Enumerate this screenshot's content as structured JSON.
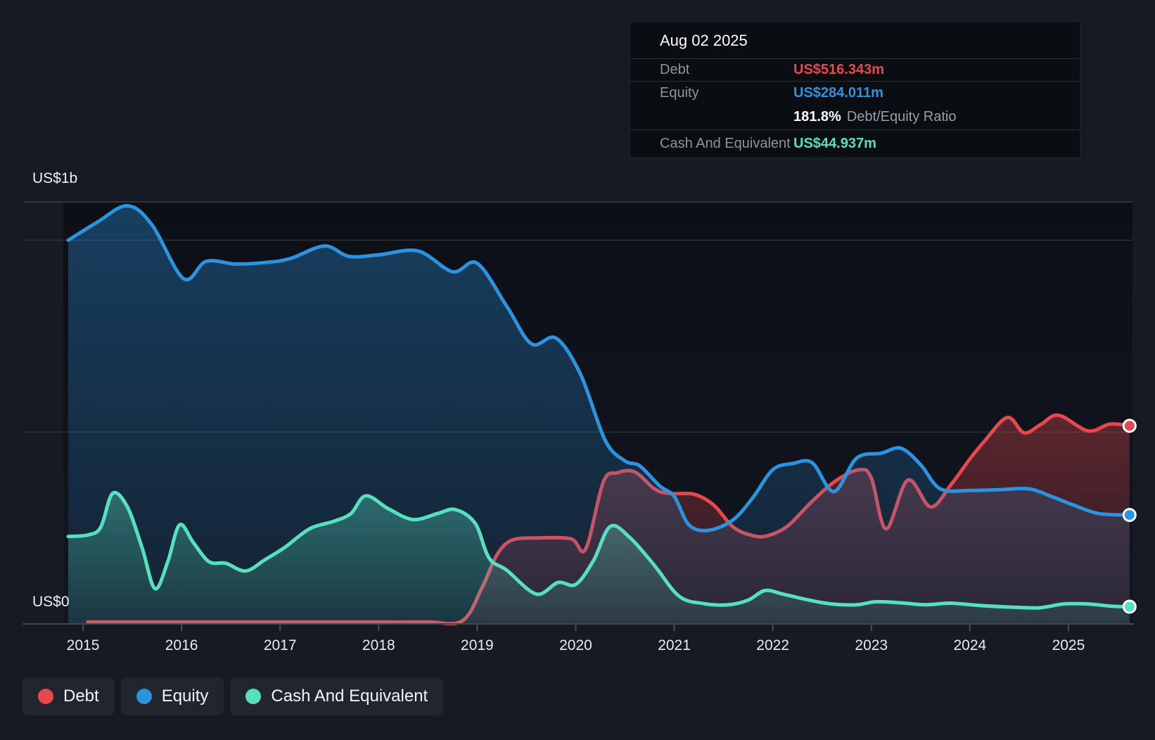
{
  "y_axis": {
    "top_label": "US$1b",
    "bottom_label": "US$0"
  },
  "tooltip": {
    "date": "Aug 02 2025",
    "rows": [
      {
        "label": "Debt",
        "value": "US$516.343m",
        "series": "debt"
      },
      {
        "label": "Equity",
        "value": "US$284.011m",
        "series": "equity"
      },
      {
        "label": "Cash And Equivalent",
        "value": "US$44.937m",
        "series": "cash"
      }
    ],
    "ratio": {
      "value": "181.8%",
      "label": "Debt/Equity Ratio"
    }
  },
  "legend": {
    "items": [
      {
        "label": "Debt",
        "color": "#e5484d"
      },
      {
        "label": "Equity",
        "color": "#2b93e0"
      },
      {
        "label": "Cash And Equivalent",
        "color": "#57e0c0"
      }
    ]
  },
  "chart_data": {
    "type": "area",
    "title": "Debt to Equity History",
    "xlabel": "",
    "ylabel": "US$",
    "xlim": [
      2014.8,
      2025.65
    ],
    "ylim": [
      0,
      1100
    ],
    "x_ticks": [
      2015,
      2016,
      2017,
      2018,
      2019,
      2020,
      2021,
      2022,
      2023,
      2024,
      2025
    ],
    "y_gridlines_values": [
      1000,
      500,
      0
    ],
    "grid": true,
    "legend_position": "bottom-left",
    "series": [
      {
        "name": "Debt",
        "color": "#e5484d",
        "end_value": 516.343,
        "points": [
          [
            2015.05,
            5
          ],
          [
            2015.5,
            5
          ],
          [
            2016.0,
            5
          ],
          [
            2016.5,
            5
          ],
          [
            2017.0,
            5
          ],
          [
            2017.5,
            5
          ],
          [
            2018.0,
            5
          ],
          [
            2018.5,
            5
          ],
          [
            2018.85,
            8
          ],
          [
            2019.05,
            95
          ],
          [
            2019.2,
            180
          ],
          [
            2019.35,
            218
          ],
          [
            2019.6,
            224
          ],
          [
            2019.95,
            222
          ],
          [
            2020.1,
            195
          ],
          [
            2020.28,
            370
          ],
          [
            2020.42,
            394
          ],
          [
            2020.6,
            396
          ],
          [
            2020.8,
            352
          ],
          [
            2020.95,
            340
          ],
          [
            2021.2,
            338
          ],
          [
            2021.4,
            310
          ],
          [
            2021.6,
            252
          ],
          [
            2021.8,
            230
          ],
          [
            2021.95,
            230
          ],
          [
            2022.15,
            255
          ],
          [
            2022.4,
            320
          ],
          [
            2022.65,
            375
          ],
          [
            2022.88,
            402
          ],
          [
            2023.0,
            380
          ],
          [
            2023.15,
            248
          ],
          [
            2023.37,
            375
          ],
          [
            2023.6,
            305
          ],
          [
            2023.8,
            360
          ],
          [
            2024.0,
            430
          ],
          [
            2024.15,
            477
          ],
          [
            2024.38,
            538
          ],
          [
            2024.55,
            498
          ],
          [
            2024.72,
            520
          ],
          [
            2024.9,
            544
          ],
          [
            2025.2,
            503
          ],
          [
            2025.42,
            521
          ],
          [
            2025.62,
            516.343
          ]
        ]
      },
      {
        "name": "Equity",
        "color": "#2b93e0",
        "end_value": 284.011,
        "points": [
          [
            2014.85,
            1000
          ],
          [
            2015.15,
            1048
          ],
          [
            2015.45,
            1090
          ],
          [
            2015.7,
            1040
          ],
          [
            2016.02,
            900
          ],
          [
            2016.25,
            945
          ],
          [
            2016.55,
            938
          ],
          [
            2016.85,
            942
          ],
          [
            2017.1,
            952
          ],
          [
            2017.45,
            985
          ],
          [
            2017.7,
            958
          ],
          [
            2018.0,
            962
          ],
          [
            2018.4,
            972
          ],
          [
            2018.75,
            918
          ],
          [
            2019.0,
            940
          ],
          [
            2019.3,
            828
          ],
          [
            2019.55,
            730
          ],
          [
            2019.8,
            745
          ],
          [
            2020.05,
            650
          ],
          [
            2020.3,
            478
          ],
          [
            2020.5,
            425
          ],
          [
            2020.65,
            412
          ],
          [
            2020.85,
            360
          ],
          [
            2021.0,
            332
          ],
          [
            2021.15,
            258
          ],
          [
            2021.35,
            244
          ],
          [
            2021.6,
            272
          ],
          [
            2021.8,
            330
          ],
          [
            2022.0,
            402
          ],
          [
            2022.2,
            418
          ],
          [
            2022.4,
            420
          ],
          [
            2022.62,
            345
          ],
          [
            2022.85,
            432
          ],
          [
            2023.1,
            445
          ],
          [
            2023.3,
            458
          ],
          [
            2023.5,
            415
          ],
          [
            2023.7,
            352
          ],
          [
            2024.0,
            348
          ],
          [
            2024.3,
            350
          ],
          [
            2024.6,
            352
          ],
          [
            2024.85,
            330
          ],
          [
            2025.05,
            310
          ],
          [
            2025.3,
            288
          ],
          [
            2025.62,
            284.011
          ]
        ]
      },
      {
        "name": "Cash And Equivalent",
        "color": "#57e0c0",
        "end_value": 44.937,
        "points": [
          [
            2014.85,
            228
          ],
          [
            2015.05,
            232
          ],
          [
            2015.18,
            252
          ],
          [
            2015.3,
            340
          ],
          [
            2015.45,
            305
          ],
          [
            2015.6,
            198
          ],
          [
            2015.73,
            92
          ],
          [
            2015.86,
            162
          ],
          [
            2015.98,
            258
          ],
          [
            2016.12,
            212
          ],
          [
            2016.28,
            162
          ],
          [
            2016.45,
            158
          ],
          [
            2016.65,
            138
          ],
          [
            2016.85,
            168
          ],
          [
            2017.05,
            200
          ],
          [
            2017.3,
            248
          ],
          [
            2017.55,
            268
          ],
          [
            2017.72,
            288
          ],
          [
            2017.87,
            334
          ],
          [
            2018.1,
            300
          ],
          [
            2018.35,
            272
          ],
          [
            2018.6,
            288
          ],
          [
            2018.78,
            298
          ],
          [
            2018.98,
            262
          ],
          [
            2019.12,
            172
          ],
          [
            2019.3,
            140
          ],
          [
            2019.6,
            78
          ],
          [
            2019.82,
            108
          ],
          [
            2020.0,
            103
          ],
          [
            2020.18,
            165
          ],
          [
            2020.35,
            254
          ],
          [
            2020.55,
            225
          ],
          [
            2020.8,
            152
          ],
          [
            2021.05,
            72
          ],
          [
            2021.3,
            53
          ],
          [
            2021.55,
            50
          ],
          [
            2021.75,
            62
          ],
          [
            2021.92,
            87
          ],
          [
            2022.1,
            78
          ],
          [
            2022.35,
            63
          ],
          [
            2022.6,
            52
          ],
          [
            2022.85,
            50
          ],
          [
            2023.05,
            58
          ],
          [
            2023.3,
            55
          ],
          [
            2023.55,
            50
          ],
          [
            2023.8,
            54
          ],
          [
            2024.1,
            48
          ],
          [
            2024.4,
            44
          ],
          [
            2024.7,
            42
          ],
          [
            2024.95,
            52
          ],
          [
            2025.2,
            52
          ],
          [
            2025.45,
            46
          ],
          [
            2025.62,
            44.937
          ]
        ]
      }
    ]
  },
  "colors": {
    "page_bg": "#171a23",
    "plot_bg_top": "#0c0f16",
    "plot_bg_bottom": "#121620",
    "grid_top_border": "#3a404a",
    "gridline": "#2a2f38",
    "baseline": "#42474f",
    "tick": "#4a4e55",
    "tick_label": "#e9ebed",
    "axis_label": "#eef0f2"
  }
}
